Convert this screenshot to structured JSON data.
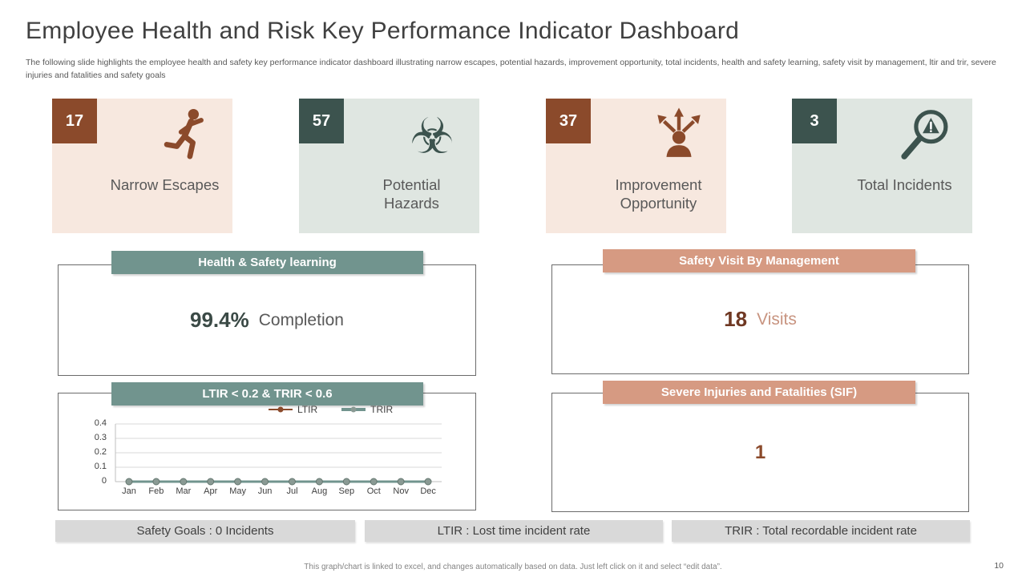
{
  "slide": {
    "title": "Employee Health and Risk Key Performance Indicator Dashboard",
    "subtitle": "The following slide highlights the employee health and safety key performance indicator dashboard illustrating narrow escapes, potential hazards, improvement opportunity, total incidents, health and safety learning, safety visit by management, ltir and trir, severe injuries and fatalities and safety goals",
    "footer_note": "This graph/chart is linked to excel, and changes automatically based on data. Just left click on it and select “edit data”.",
    "page_number": "10"
  },
  "kpi_cards": [
    {
      "value": "17",
      "label": "Narrow Escapes",
      "icon": "running-person-icon"
    },
    {
      "value": "57",
      "label": "Potential Hazards",
      "icon": "biohazard-icon"
    },
    {
      "value": "37",
      "label": "Improvement Opportunity",
      "icon": "person-arrows-icon"
    },
    {
      "value": "3",
      "label": "Total Incidents",
      "icon": "magnifier-alert-icon"
    }
  ],
  "glyphs": {
    "biohazard": "☣"
  },
  "panels": {
    "health_safety_learning": {
      "header": "Health & Safety learning",
      "value": "99.4%",
      "unit": "Completion"
    },
    "safety_visit": {
      "header": "Safety Visit By Management",
      "value": "18",
      "unit": "Visits"
    },
    "ltir_trir": {
      "header": "LTIR < 0.2  &  TRIR  <  0.6"
    },
    "sif": {
      "header": "Severe Injuries and Fatalities (SIF)",
      "value": "1"
    }
  },
  "chart_data": {
    "type": "line",
    "title": "LTIR < 0.2 & TRIR < 0.6",
    "categories": [
      "Jan",
      "Feb",
      "Mar",
      "Apr",
      "May",
      "Jun",
      "Jul",
      "Aug",
      "Sep",
      "Oct",
      "Nov",
      "Dec"
    ],
    "series": [
      {
        "name": "LTIR",
        "color": "#8B4A2B",
        "values": [
          0,
          0,
          0,
          0,
          0,
          0,
          0,
          0,
          0,
          0,
          0,
          0
        ]
      },
      {
        "name": "TRIR",
        "color": "#71948E",
        "values": [
          0,
          0,
          0,
          0,
          0,
          0,
          0,
          0,
          0,
          0,
          0,
          0
        ]
      }
    ],
    "ylim": [
      0,
      0.4
    ],
    "yticks": [
      "0.4",
      "0.3",
      "0.2",
      "0.1",
      "0"
    ],
    "grid": true,
    "legend_position": "top"
  },
  "legend_boxes": [
    "Safety Goals : 0 Incidents",
    "LTIR : Lost time incident rate",
    "TRIR : Total recordable incident rate"
  ],
  "colors": {
    "brown": "#8B4A2B",
    "dark_teal": "#3C534E",
    "teal_header": "#71948E",
    "salmon_header": "#D69A82",
    "card_pink": "#F7E8DF",
    "card_green": "#DFE6E1",
    "value_dark": "#3B4A46",
    "maroon": "#6F3823",
    "salmon_text": "#C89480",
    "gray_box": "#D9D9D9"
  }
}
